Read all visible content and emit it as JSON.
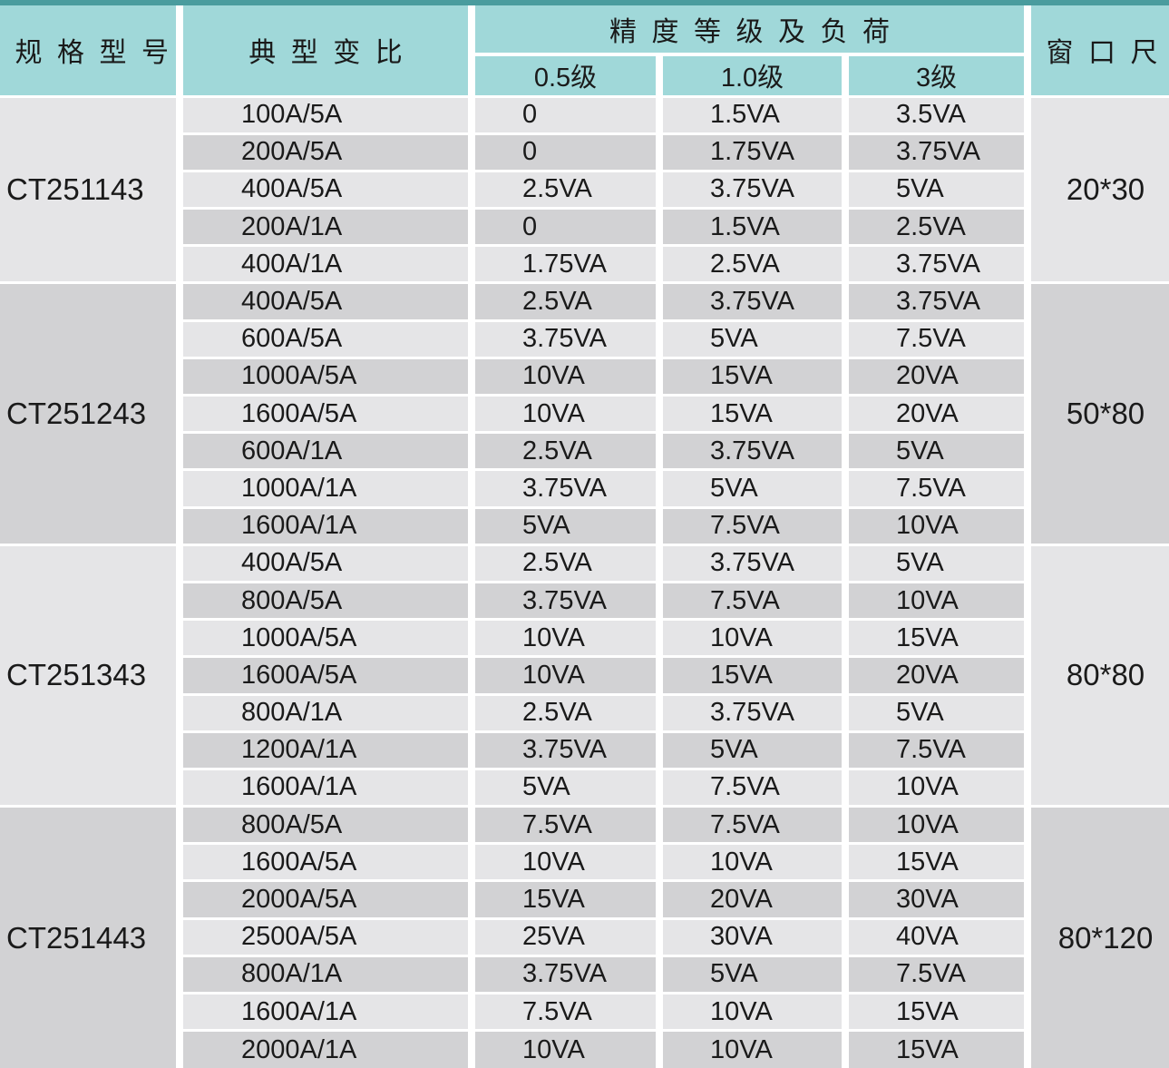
{
  "colors": {
    "strip": "#4a9c9e",
    "teal": "#a0d8d9",
    "row_light": "#e5e5e7",
    "row_dark": "#d2d2d4",
    "text": "#1a1a1a"
  },
  "header": {
    "model": "规格型号",
    "ratio": "典型变比",
    "accuracy_group": "精度等级及负荷",
    "class_05": "0.5级",
    "class_10": "1.0级",
    "class_3": "3级",
    "window": "窗口尺"
  },
  "groups": [
    {
      "model": "CT251143",
      "window": "20*30",
      "rows": [
        {
          "ratio": "100A/5A",
          "va05": "0",
          "va10": "1.5VA",
          "va3": "3.5VA"
        },
        {
          "ratio": "200A/5A",
          "va05": "0",
          "va10": "1.75VA",
          "va3": "3.75VA"
        },
        {
          "ratio": "400A/5A",
          "va05": "2.5VA",
          "va10": "3.75VA",
          "va3": "5VA"
        },
        {
          "ratio": "200A/1A",
          "va05": "0",
          "va10": "1.5VA",
          "va3": "2.5VA"
        },
        {
          "ratio": "400A/1A",
          "va05": "1.75VA",
          "va10": "2.5VA",
          "va3": "3.75VA"
        }
      ]
    },
    {
      "model": "CT251243",
      "window": "50*80",
      "rows": [
        {
          "ratio": "400A/5A",
          "va05": "2.5VA",
          "va10": "3.75VA",
          "va3": "3.75VA"
        },
        {
          "ratio": "600A/5A",
          "va05": "3.75VA",
          "va10": "5VA",
          "va3": "7.5VA"
        },
        {
          "ratio": "1000A/5A",
          "va05": "10VA",
          "va10": "15VA",
          "va3": "20VA"
        },
        {
          "ratio": "1600A/5A",
          "va05": "10VA",
          "va10": "15VA",
          "va3": "20VA"
        },
        {
          "ratio": "600A/1A",
          "va05": "2.5VA",
          "va10": "3.75VA",
          "va3": "5VA"
        },
        {
          "ratio": "1000A/1A",
          "va05": "3.75VA",
          "va10": "5VA",
          "va3": "7.5VA"
        },
        {
          "ratio": "1600A/1A",
          "va05": "5VA",
          "va10": "7.5VA",
          "va3": "10VA"
        }
      ]
    },
    {
      "model": "CT251343",
      "window": "80*80",
      "rows": [
        {
          "ratio": "400A/5A",
          "va05": "2.5VA",
          "va10": "3.75VA",
          "va3": "5VA"
        },
        {
          "ratio": "800A/5A",
          "va05": "3.75VA",
          "va10": "7.5VA",
          "va3": "10VA"
        },
        {
          "ratio": "1000A/5A",
          "va05": "10VA",
          "va10": "10VA",
          "va3": "15VA"
        },
        {
          "ratio": "1600A/5A",
          "va05": "10VA",
          "va10": "15VA",
          "va3": "20VA"
        },
        {
          "ratio": "800A/1A",
          "va05": "2.5VA",
          "va10": "3.75VA",
          "va3": "5VA"
        },
        {
          "ratio": "1200A/1A",
          "va05": "3.75VA",
          "va10": "5VA",
          "va3": "7.5VA"
        },
        {
          "ratio": "1600A/1A",
          "va05": "5VA",
          "va10": "7.5VA",
          "va3": "10VA"
        }
      ]
    },
    {
      "model": "CT251443",
      "window": "80*120",
      "rows": [
        {
          "ratio": "800A/5A",
          "va05": "7.5VA",
          "va10": "7.5VA",
          "va3": "10VA"
        },
        {
          "ratio": "1600A/5A",
          "va05": "10VA",
          "va10": "10VA",
          "va3": "15VA"
        },
        {
          "ratio": "2000A/5A",
          "va05": "15VA",
          "va10": "20VA",
          "va3": "30VA"
        },
        {
          "ratio": "2500A/5A",
          "va05": "25VA",
          "va10": "30VA",
          "va3": "40VA"
        },
        {
          "ratio": "800A/1A",
          "va05": "3.75VA",
          "va10": "5VA",
          "va3": "7.5VA"
        },
        {
          "ratio": "1600A/1A",
          "va05": "7.5VA",
          "va10": "10VA",
          "va3": "15VA"
        },
        {
          "ratio": "2000A/1A",
          "va05": "10VA",
          "va10": "10VA",
          "va3": "15VA"
        }
      ]
    }
  ]
}
